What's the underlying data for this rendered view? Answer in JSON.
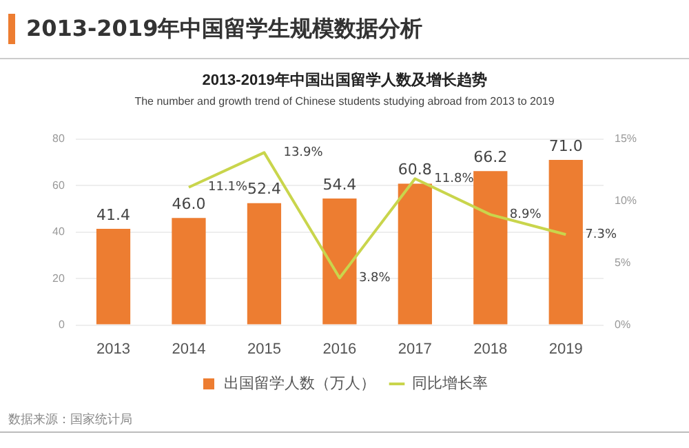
{
  "chart_data": {
    "type": "bar",
    "title": "2013-2019年中国出国留学人数及增长趋势",
    "subtitle": "The number and growth trend of Chinese students studying abroad from 2013 to 2019",
    "annotations": [
      "2013-2019年中国留学生规模数据分析",
      "数据来源：国家统计局"
    ],
    "categories": [
      "2013",
      "2014",
      "2015",
      "2016",
      "2017",
      "2018",
      "2019"
    ],
    "series": [
      {
        "name": "出国留学人数（万人）",
        "color": "#ed7d31",
        "values": [
          41.4,
          46.0,
          52.4,
          54.4,
          60.8,
          66.2,
          71.0
        ],
        "value_labels": [
          "41.4",
          "46.0",
          "52.4",
          "54.4",
          "60.8",
          "66.2",
          "71.0"
        ]
      },
      {
        "name": "同比增长率",
        "type": "line",
        "axis": "y2",
        "color": "#c9d54c",
        "values": [
          null,
          11.1,
          13.9,
          3.8,
          11.8,
          8.9,
          7.3
        ],
        "value_labels": [
          null,
          "11.1%",
          "13.9%",
          "3.8%",
          "11.8%",
          "8.9%",
          "7.3%"
        ]
      }
    ],
    "ylim": [
      0,
      80
    ],
    "yticks": [
      0,
      20,
      40,
      60,
      80
    ],
    "y2lim": [
      0,
      15
    ],
    "y2ticks": [
      {
        "value": 0,
        "label": "0%"
      },
      {
        "value": 5,
        "label": "5%"
      },
      {
        "value": 10,
        "label": "10%"
      },
      {
        "value": 15,
        "label": "15%"
      }
    ],
    "grid": "y",
    "legend": "bottom",
    "marker": "none",
    "line_style": "solid"
  }
}
